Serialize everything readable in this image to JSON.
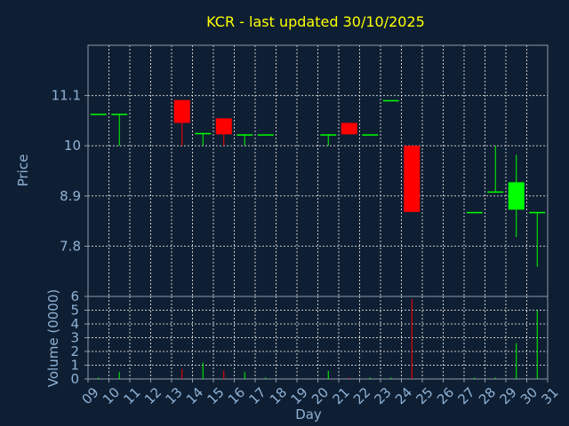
{
  "chart_data": {
    "type": "candlestick",
    "title": "KCR - last updated 30/10/2025",
    "xlabel": "Day",
    "colors": {
      "up": "#00ff00",
      "down": "#ff0000",
      "background": "#0f1f33",
      "text": "#8fb2d6",
      "title": "#ffff00"
    },
    "x_ticks": [
      "09",
      "10",
      "11",
      "12",
      "13",
      "14",
      "15",
      "16",
      "17",
      "18",
      "19",
      "20",
      "21",
      "22",
      "23",
      "24",
      "25",
      "26",
      "27",
      "28",
      "29",
      "30",
      "31"
    ],
    "price_panel": {
      "ylabel": "Price",
      "ylim": [
        6.7,
        12.2
      ],
      "y_ticks": [
        7.8,
        8.9,
        10,
        11.1
      ],
      "y_tick_labels": [
        "7.8",
        "8.9",
        "10",
        "11.1"
      ],
      "grid": true
    },
    "volume_panel": {
      "ylabel": "Volume (0000)",
      "ylim": [
        0,
        6
      ],
      "y_ticks": [
        0,
        1,
        2,
        3,
        4,
        5,
        6
      ],
      "y_tick_labels": [
        "0",
        "1",
        "2",
        "3",
        "4",
        "5",
        "6"
      ],
      "grid": true
    },
    "candles": [
      {
        "day": 9,
        "open": 10.7,
        "high": 10.7,
        "low": 10.7,
        "close": 10.7,
        "volume": 0.1
      },
      {
        "day": 10,
        "open": 10.7,
        "high": 10.7,
        "low": 10.0,
        "close": 10.7,
        "volume": 0.5
      },
      {
        "day": 13,
        "open": 11.0,
        "high": 11.0,
        "low": 10.0,
        "close": 10.5,
        "volume": 0.7
      },
      {
        "day": 14,
        "open": 10.28,
        "high": 10.28,
        "low": 10.0,
        "close": 10.28,
        "volume": 1.2
      },
      {
        "day": 15,
        "open": 10.6,
        "high": 10.6,
        "low": 10.0,
        "close": 10.25,
        "volume": 0.6
      },
      {
        "day": 16,
        "open": 10.25,
        "high": 10.25,
        "low": 10.0,
        "close": 10.25,
        "volume": 0.5
      },
      {
        "day": 17,
        "open": 10.25,
        "high": 10.25,
        "low": 10.25,
        "close": 10.25,
        "volume": 0.1
      },
      {
        "day": 20,
        "open": 10.25,
        "high": 10.25,
        "low": 10.0,
        "close": 10.25,
        "volume": 0.6
      },
      {
        "day": 21,
        "open": 10.5,
        "high": 10.5,
        "low": 10.25,
        "close": 10.25,
        "volume": 0.1
      },
      {
        "day": 22,
        "open": 10.25,
        "high": 10.25,
        "low": 10.25,
        "close": 10.25,
        "volume": 0.1
      },
      {
        "day": 23,
        "open": 11.0,
        "high": 11.0,
        "low": 11.0,
        "close": 11.0,
        "volume": 0.1
      },
      {
        "day": 24,
        "open": 10.0,
        "high": 10.0,
        "low": 8.55,
        "close": 8.55,
        "volume": 5.8
      },
      {
        "day": 27,
        "open": 8.55,
        "high": 8.55,
        "low": 8.55,
        "close": 8.55,
        "volume": 0.1
      },
      {
        "day": 28,
        "open": 9.0,
        "high": 10.0,
        "low": 9.0,
        "close": 9.0,
        "volume": 0.1
      },
      {
        "day": 29,
        "open": 8.6,
        "high": 9.8,
        "low": 8.0,
        "close": 9.2,
        "volume": 2.6
      },
      {
        "day": 30,
        "open": 8.55,
        "high": 8.55,
        "low": 7.35,
        "close": 8.55,
        "volume": 5.0
      }
    ]
  }
}
